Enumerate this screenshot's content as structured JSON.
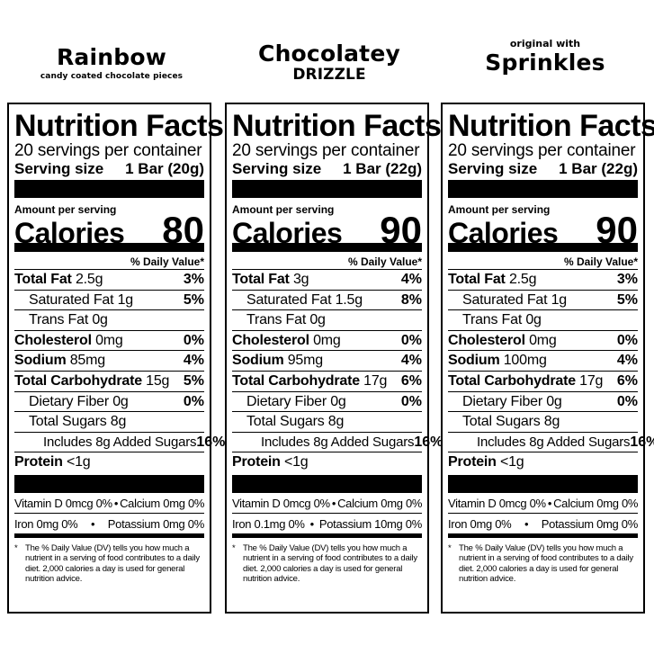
{
  "products": [
    {
      "header": {
        "pre": "",
        "name": "Rainbow",
        "sub": "candy coated chocolate pieces"
      },
      "label": {
        "title": "Nutrition Facts",
        "servings": "20 servings per container",
        "serving_size_label": "Serving size",
        "serving_size_value": "1 Bar (20g)",
        "amount_per_serving": "Amount per serving",
        "calories_label": "Calories",
        "calories": "80",
        "dv_header": "% Daily Value*",
        "rows": [
          {
            "name": "Total Fat",
            "amount": "2.5g",
            "dv": "3%"
          },
          {
            "name": "Saturated Fat",
            "amount": "1g",
            "dv": "5%"
          },
          {
            "name": "Trans Fat",
            "amount": "0g",
            "dv": ""
          },
          {
            "name": "Cholesterol",
            "amount": "0mg",
            "dv": "0%"
          },
          {
            "name": "Sodium",
            "amount": "85mg",
            "dv": "4%"
          },
          {
            "name": "Total Carbohydrate",
            "amount": "15g",
            "dv": "5%"
          },
          {
            "name": "Dietary Fiber",
            "amount": "0g",
            "dv": "0%"
          },
          {
            "name": "Total Sugars",
            "amount": "8g",
            "dv": ""
          },
          {
            "name": "Includes 8g Added Sugars",
            "amount": "",
            "dv": "16%"
          },
          {
            "name": "Protein",
            "amount": "<1g",
            "dv": ""
          }
        ],
        "vitamins": {
          "vit_d": "Vitamin D 0mcg 0%",
          "calcium": "Calcium 0mg 0%",
          "iron": "Iron 0mg 0%",
          "potassium": "Potassium 0mg 0%"
        },
        "footnote": "The % Daily Value (DV) tells you how much a nutrient in a serving of food contributes to a daily diet. 2,000 calories a day is used for general nutrition advice."
      }
    },
    {
      "header": {
        "pre": "",
        "name": "Chocolatey",
        "sub": "DRIZZLE"
      },
      "label": {
        "title": "Nutrition Facts",
        "servings": "20 servings per container",
        "serving_size_label": "Serving size",
        "serving_size_value": "1 Bar (22g)",
        "amount_per_serving": "Amount per serving",
        "calories_label": "Calories",
        "calories": "90",
        "dv_header": "% Daily Value*",
        "rows": [
          {
            "name": "Total Fat",
            "amount": "3g",
            "dv": "4%"
          },
          {
            "name": "Saturated Fat",
            "amount": "1.5g",
            "dv": "8%"
          },
          {
            "name": "Trans Fat",
            "amount": "0g",
            "dv": ""
          },
          {
            "name": "Cholesterol",
            "amount": "0mg",
            "dv": "0%"
          },
          {
            "name": "Sodium",
            "amount": "95mg",
            "dv": "4%"
          },
          {
            "name": "Total Carbohydrate",
            "amount": "17g",
            "dv": "6%"
          },
          {
            "name": "Dietary Fiber",
            "amount": "0g",
            "dv": "0%"
          },
          {
            "name": "Total Sugars",
            "amount": "8g",
            "dv": ""
          },
          {
            "name": "Includes 8g Added Sugars",
            "amount": "",
            "dv": "16%"
          },
          {
            "name": "Protein",
            "amount": "<1g",
            "dv": ""
          }
        ],
        "vitamins": {
          "vit_d": "Vitamin D 0mcg 0%",
          "calcium": "Calcium 0mg 0%",
          "iron": "Iron 0.1mg 0%",
          "potassium": "Potassium 10mg 0%"
        },
        "footnote": "The % Daily Value (DV) tells you how much a nutrient in a serving of food contributes to a daily diet. 2,000 calories a day is used for general nutrition advice."
      }
    },
    {
      "header": {
        "pre": "original with",
        "name": "Sprinkles",
        "sub": ""
      },
      "label": {
        "title": "Nutrition Facts",
        "servings": "20 servings per container",
        "serving_size_label": "Serving size",
        "serving_size_value": "1 Bar (22g)",
        "amount_per_serving": "Amount per serving",
        "calories_label": "Calories",
        "calories": "90",
        "dv_header": "% Daily Value*",
        "rows": [
          {
            "name": "Total Fat",
            "amount": "2.5g",
            "dv": "3%"
          },
          {
            "name": "Saturated Fat",
            "amount": "1g",
            "dv": "5%"
          },
          {
            "name": "Trans Fat",
            "amount": "0g",
            "dv": ""
          },
          {
            "name": "Cholesterol",
            "amount": "0mg",
            "dv": "0%"
          },
          {
            "name": "Sodium",
            "amount": "100mg",
            "dv": "4%"
          },
          {
            "name": "Total Carbohydrate",
            "amount": "17g",
            "dv": "6%"
          },
          {
            "name": "Dietary Fiber",
            "amount": "0g",
            "dv": "0%"
          },
          {
            "name": "Total Sugars",
            "amount": "8g",
            "dv": ""
          },
          {
            "name": "Includes 8g Added Sugars",
            "amount": "",
            "dv": "16%"
          },
          {
            "name": "Protein",
            "amount": "<1g",
            "dv": ""
          }
        ],
        "vitamins": {
          "vit_d": "Vitamin D 0mcg 0%",
          "calcium": "Calcium 0mg 0%",
          "iron": "Iron 0mg 0%",
          "potassium": "Potassium 0mg 0%"
        },
        "footnote": "The % Daily Value (DV) tells you how much a nutrient in a serving of food contributes to a daily diet. 2,000 calories a day is used for general nutrition advice."
      }
    }
  ]
}
